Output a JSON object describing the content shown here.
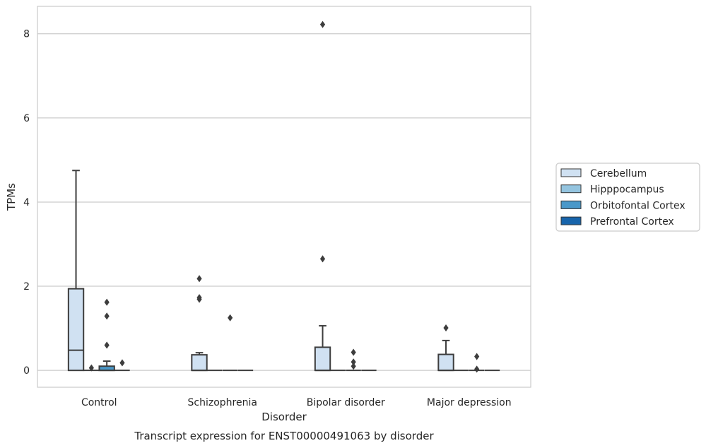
{
  "chart_data": {
    "type": "box",
    "title": "Transcript expression for ENST00000491063 by disorder",
    "xlabel": "Disorder",
    "ylabel": "TPMs",
    "ylim": [
      -0.4,
      8.65
    ],
    "yticks": [
      0,
      2,
      4,
      6,
      8
    ],
    "grid": "horizontal",
    "legend_position": "right",
    "categories": [
      "Control",
      "Schizophrenia",
      "Bipolar disorder",
      "Major depression"
    ],
    "series": [
      {
        "name": "Cerebellum",
        "color": "#d0e1f2",
        "boxes": [
          {
            "q1": 0,
            "median": 0.48,
            "q3": 1.94,
            "whisker_low": 0,
            "whisker_high": 4.75,
            "outliers": []
          },
          {
            "q1": 0,
            "median": 0,
            "q3": 0.37,
            "whisker_low": 0,
            "whisker_high": 0.42,
            "outliers": [
              1.69,
              1.73,
              2.18
            ]
          },
          {
            "q1": 0,
            "median": 0,
            "q3": 0.55,
            "whisker_low": 0,
            "whisker_high": 1.06,
            "outliers": [
              2.65,
              8.22
            ]
          },
          {
            "q1": 0,
            "median": 0,
            "q3": 0.38,
            "whisker_low": 0,
            "whisker_high": 0.71,
            "outliers": [
              1.01
            ]
          }
        ]
      },
      {
        "name": "Hipppocampus",
        "color": "#94c4df",
        "boxes": [
          {
            "q1": 0,
            "median": 0,
            "q3": 0,
            "whisker_low": 0,
            "whisker_high": 0,
            "outliers": [
              0.06
            ]
          },
          {
            "q1": 0,
            "median": 0,
            "q3": 0,
            "whisker_low": 0,
            "whisker_high": 0,
            "outliers": []
          },
          {
            "q1": 0,
            "median": 0,
            "q3": 0,
            "whisker_low": 0,
            "whisker_high": 0,
            "outliers": []
          },
          {
            "q1": 0,
            "median": 0,
            "q3": 0,
            "whisker_low": 0,
            "whisker_high": 0,
            "outliers": []
          }
        ]
      },
      {
        "name": "Orbitofontal Cortex",
        "color": "#4a98c9",
        "boxes": [
          {
            "q1": 0,
            "median": 0,
            "q3": 0.1,
            "whisker_low": 0,
            "whisker_high": 0.22,
            "outliers": [
              0.6,
              1.29,
              1.62
            ]
          },
          {
            "q1": 0,
            "median": 0,
            "q3": 0,
            "whisker_low": 0,
            "whisker_high": 0,
            "outliers": [
              1.25
            ]
          },
          {
            "q1": 0,
            "median": 0,
            "q3": 0,
            "whisker_low": 0,
            "whisker_high": 0,
            "outliers": [
              0.1,
              0.2,
              0.43
            ]
          },
          {
            "q1": 0,
            "median": 0,
            "q3": 0,
            "whisker_low": 0,
            "whisker_high": 0,
            "outliers": [
              0.03,
              0.33
            ]
          }
        ]
      },
      {
        "name": "Prefrontal Cortex",
        "color": "#1764ab",
        "boxes": [
          {
            "q1": 0,
            "median": 0,
            "q3": 0,
            "whisker_low": 0,
            "whisker_high": 0,
            "outliers": [
              0.18
            ]
          },
          {
            "q1": 0,
            "median": 0,
            "q3": 0,
            "whisker_low": 0,
            "whisker_high": 0,
            "outliers": []
          },
          {
            "q1": 0,
            "median": 0,
            "q3": 0,
            "whisker_low": 0,
            "whisker_high": 0,
            "outliers": []
          },
          {
            "q1": 0,
            "median": 0,
            "q3": 0,
            "whisker_low": 0,
            "whisker_high": 0,
            "outliers": []
          }
        ]
      }
    ]
  }
}
